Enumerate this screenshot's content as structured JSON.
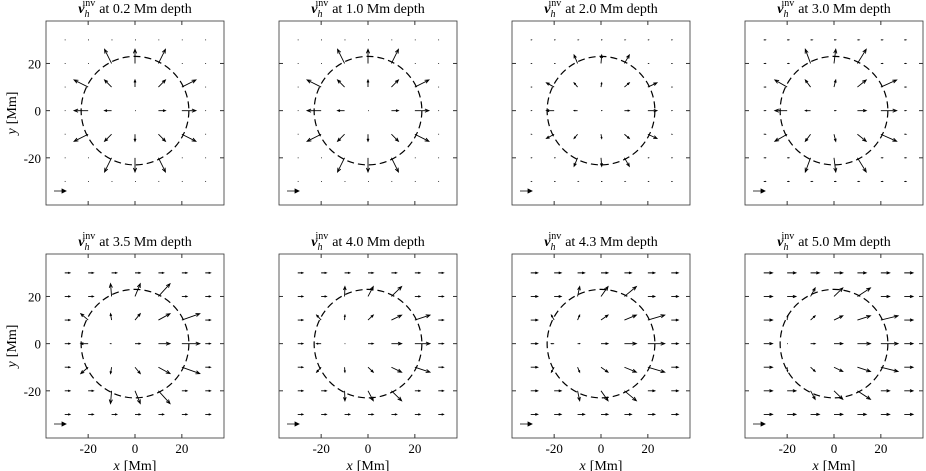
{
  "chart_data": [
    {
      "type": "quiver",
      "title": {
        "symbol": "v",
        "subscript": "h",
        "superscript": "inv",
        "text": "at 0.2 Mm depth"
      },
      "ylabel": {
        "symbol": "y",
        "text": "[Mm]"
      },
      "xlim": [
        -38,
        38
      ],
      "ylim": [
        -40,
        38
      ],
      "xticks": [
        -20,
        0,
        20
      ],
      "yticks": [
        -20,
        0,
        20
      ],
      "circle_r": 23,
      "x": [
        -30,
        -20,
        -10,
        0,
        10,
        20,
        30
      ],
      "y": [
        -30,
        -20,
        -10,
        0,
        10,
        20,
        30
      ],
      "u": [
        [
          0,
          0,
          0,
          0,
          0,
          0,
          0
        ],
        [
          0,
          0,
          -2,
          0,
          2,
          0,
          0
        ],
        [
          0,
          -4,
          -2,
          0,
          2,
          4,
          0
        ],
        [
          0,
          -4,
          -2,
          0,
          2,
          4,
          0
        ],
        [
          0,
          -4,
          -2,
          0,
          2,
          4,
          0
        ],
        [
          0,
          0,
          -2,
          0,
          2,
          0,
          0
        ],
        [
          0,
          0,
          0,
          0,
          0,
          0,
          0
        ]
      ],
      "v": [
        [
          0,
          0,
          0,
          0,
          0,
          0,
          0
        ],
        [
          0,
          0,
          -4,
          -4,
          -4,
          0,
          0
        ],
        [
          0,
          -2,
          -2,
          -2,
          -2,
          -2,
          0
        ],
        [
          0,
          0,
          0,
          0,
          0,
          0,
          0
        ],
        [
          0,
          2,
          2,
          2,
          2,
          2,
          0
        ],
        [
          0,
          0,
          4,
          4,
          4,
          0,
          0
        ],
        [
          0,
          0,
          0,
          0,
          0,
          0,
          0
        ]
      ]
    },
    {
      "type": "quiver",
      "title": {
        "symbol": "v",
        "subscript": "h",
        "superscript": "inv",
        "text": "at 1.0 Mm depth"
      },
      "xlim": [
        -38,
        38
      ],
      "ylim": [
        -40,
        38
      ],
      "xticks": [
        -20,
        0,
        20
      ],
      "yticks": [
        -20,
        0,
        20
      ],
      "circle_r": 23,
      "x": [
        -30,
        -20,
        -10,
        0,
        10,
        20,
        30
      ],
      "y": [
        -30,
        -20,
        -10,
        0,
        10,
        20,
        30
      ],
      "u": [
        [
          0,
          0,
          0,
          0,
          0,
          0,
          0
        ],
        [
          0,
          0,
          -2,
          0,
          2,
          0,
          0
        ],
        [
          0,
          -4,
          -2,
          0,
          2,
          4,
          0
        ],
        [
          0,
          -4,
          -2,
          0,
          2,
          4,
          0
        ],
        [
          0,
          -4,
          -2,
          0,
          2,
          4,
          0
        ],
        [
          0,
          0,
          -2,
          0,
          2,
          0,
          0
        ],
        [
          0,
          0,
          0,
          0,
          0,
          0,
          0
        ]
      ],
      "v": [
        [
          0,
          0,
          0,
          0,
          0,
          0,
          0
        ],
        [
          0,
          0,
          -4,
          -4,
          -4,
          0,
          0
        ],
        [
          0,
          -2,
          -2,
          -2,
          -2,
          -2,
          0
        ],
        [
          0,
          0,
          0,
          0,
          0,
          0,
          0
        ],
        [
          0,
          2,
          2,
          2,
          2,
          2,
          0
        ],
        [
          0,
          0,
          4,
          4,
          4,
          0,
          0
        ],
        [
          0,
          0,
          0,
          0,
          0,
          0,
          0
        ]
      ]
    },
    {
      "type": "quiver",
      "title": {
        "symbol": "v",
        "subscript": "h",
        "superscript": "inv",
        "text": "at 2.0 Mm depth"
      },
      "xlim": [
        -38,
        38
      ],
      "ylim": [
        -40,
        38
      ],
      "xticks": [
        -20,
        0,
        20
      ],
      "yticks": [
        -20,
        0,
        20
      ],
      "circle_r": 23,
      "x": [
        -30,
        -20,
        -10,
        0,
        10,
        20,
        30
      ],
      "y": [
        -30,
        -20,
        -10,
        0,
        10,
        20,
        30
      ],
      "u": [
        [
          0.2,
          0.2,
          0.2,
          0.2,
          0.2,
          0.2,
          0.2
        ],
        [
          0.2,
          0.2,
          -1,
          0.2,
          1.4,
          0.2,
          0.2
        ],
        [
          0.2,
          -2.2,
          -1,
          0.2,
          1.4,
          2.6,
          0.2
        ],
        [
          0.2,
          -2.2,
          -1,
          0.2,
          1.4,
          2.6,
          0.2
        ],
        [
          0.2,
          -2.2,
          -1,
          0.2,
          1.4,
          2.6,
          0.2
        ],
        [
          0.2,
          0.2,
          -1,
          0.2,
          1.4,
          0.2,
          0.2
        ],
        [
          0.2,
          0.2,
          0.2,
          0.2,
          0.2,
          0.2,
          0.2
        ]
      ],
      "v": [
        [
          0,
          0,
          0,
          0,
          0,
          0,
          0
        ],
        [
          0,
          0,
          -2.4,
          -2.4,
          -2.4,
          0,
          0
        ],
        [
          0,
          -1.2,
          -1.2,
          -1.2,
          -1.2,
          -1.2,
          0
        ],
        [
          0,
          0,
          0,
          0,
          0,
          0,
          0
        ],
        [
          0,
          1.2,
          1.2,
          1.2,
          1.2,
          1.2,
          0
        ],
        [
          0,
          0,
          2.4,
          2.4,
          2.4,
          0,
          0
        ],
        [
          0,
          0,
          0,
          0,
          0,
          0,
          0
        ]
      ]
    },
    {
      "type": "quiver",
      "title": {
        "symbol": "v",
        "subscript": "h",
        "superscript": "inv",
        "text": "at 3.0 Mm depth"
      },
      "xlim": [
        -38,
        38
      ],
      "ylim": [
        -40,
        38
      ],
      "xticks": [
        -20,
        0,
        20
      ],
      "yticks": [
        -20,
        0,
        20
      ],
      "circle_r": 23,
      "x": [
        -30,
        -20,
        -10,
        0,
        10,
        20,
        30
      ],
      "y": [
        -30,
        -20,
        -10,
        0,
        10,
        20,
        30
      ],
      "u": [
        [
          0.5,
          0.5,
          0.5,
          0.5,
          0.5,
          0.5,
          0.5
        ],
        [
          0.5,
          0.5,
          -1.5,
          0.5,
          2.5,
          0.5,
          0.5
        ],
        [
          0.5,
          -3.5,
          -1.5,
          0.5,
          2.5,
          4.5,
          0.5
        ],
        [
          0.5,
          -3.5,
          -1.5,
          0.5,
          2.5,
          4.5,
          0.5
        ],
        [
          0.5,
          -3.5,
          -1.5,
          0.5,
          2.5,
          4.5,
          0.5
        ],
        [
          0.5,
          0.5,
          -1.5,
          0.5,
          2.5,
          0.5,
          0.5
        ],
        [
          0.5,
          0.5,
          0.5,
          0.5,
          0.5,
          0.5,
          0.5
        ]
      ],
      "v": [
        [
          0,
          0,
          0,
          0,
          0,
          0,
          0
        ],
        [
          0,
          0,
          -4,
          -4,
          -4,
          0,
          0
        ],
        [
          0,
          -2,
          -2,
          -2,
          -2,
          -2,
          0
        ],
        [
          0,
          0,
          0,
          0,
          0,
          0,
          0
        ],
        [
          0,
          2,
          2,
          2,
          2,
          2,
          0
        ],
        [
          0,
          0,
          4,
          4,
          4,
          0,
          0
        ],
        [
          0,
          0,
          0,
          0,
          0,
          0,
          0
        ]
      ]
    },
    {
      "type": "quiver",
      "title": {
        "symbol": "v",
        "subscript": "h",
        "superscript": "inv",
        "text": "at 3.5 Mm depth"
      },
      "xlabel": {
        "symbol": "x",
        "text": "[Mm]"
      },
      "ylabel": {
        "symbol": "y",
        "text": "[Mm]"
      },
      "xlim": [
        -38,
        38
      ],
      "ylim": [
        -40,
        38
      ],
      "xticks": [
        -20,
        0,
        20
      ],
      "yticks": [
        -20,
        0,
        20
      ],
      "circle_r": 23,
      "x": [
        -30,
        -20,
        -10,
        0,
        10,
        20,
        30
      ],
      "y": [
        -30,
        -20,
        -10,
        0,
        10,
        20,
        30
      ],
      "u": [
        [
          1.5,
          1.5,
          1.5,
          1.5,
          1.5,
          1.5,
          1.5
        ],
        [
          1.5,
          1.5,
          -0.3,
          1.5,
          3.3,
          1.5,
          1.5
        ],
        [
          1.5,
          -2.1,
          -0.3,
          1.5,
          3.3,
          5.1,
          1.5
        ],
        [
          1.5,
          -2.1,
          -0.3,
          1.5,
          3.3,
          5.1,
          1.5
        ],
        [
          1.5,
          -2.1,
          -0.3,
          1.5,
          3.3,
          5.1,
          1.5
        ],
        [
          1.5,
          1.5,
          -0.3,
          1.5,
          3.3,
          1.5,
          1.5
        ],
        [
          1.5,
          1.5,
          1.5,
          1.5,
          1.5,
          1.5,
          1.5
        ]
      ],
      "v": [
        [
          0,
          0,
          0,
          0,
          0,
          0,
          0
        ],
        [
          0,
          0,
          -3.6,
          -3.6,
          -3.6,
          0,
          0
        ],
        [
          0,
          -1.8,
          -1.8,
          -1.8,
          -1.8,
          -1.8,
          0
        ],
        [
          0,
          0,
          0,
          0,
          0,
          0,
          0
        ],
        [
          0,
          1.8,
          1.8,
          1.8,
          1.8,
          1.8,
          0
        ],
        [
          0,
          0,
          3.6,
          3.6,
          3.6,
          0,
          0
        ],
        [
          0,
          0,
          0,
          0,
          0,
          0,
          0
        ]
      ]
    },
    {
      "type": "quiver",
      "title": {
        "symbol": "v",
        "subscript": "h",
        "superscript": "inv",
        "text": "at 4.0 Mm depth"
      },
      "xlabel": {
        "symbol": "x",
        "text": "[Mm]"
      },
      "xlim": [
        -38,
        38
      ],
      "ylim": [
        -40,
        38
      ],
      "xticks": [
        -20,
        0,
        20
      ],
      "yticks": [
        -20,
        0,
        20
      ],
      "circle_r": 23,
      "x": [
        -30,
        -20,
        -10,
        0,
        10,
        20,
        30
      ],
      "y": [
        -30,
        -20,
        -10,
        0,
        10,
        20,
        30
      ],
      "u": [
        [
          1.5,
          1.5,
          1.5,
          1.5,
          1.5,
          1.5,
          1.5
        ],
        [
          1.5,
          1.5,
          0.1,
          1.5,
          2.9,
          1.5,
          1.5
        ],
        [
          1.5,
          -1.3,
          0.1,
          1.5,
          2.9,
          4.3,
          1.5
        ],
        [
          1.5,
          -1.3,
          0.1,
          1.5,
          2.9,
          4.3,
          1.5
        ],
        [
          1.5,
          -1.3,
          0.1,
          1.5,
          2.9,
          4.3,
          1.5
        ],
        [
          1.5,
          1.5,
          0.1,
          1.5,
          2.9,
          1.5,
          1.5
        ],
        [
          1.5,
          1.5,
          1.5,
          1.5,
          1.5,
          1.5,
          1.5
        ]
      ],
      "v": [
        [
          0,
          0,
          0,
          0,
          0,
          0,
          0
        ],
        [
          0,
          0,
          -2.8,
          -2.8,
          -2.8,
          0,
          0
        ],
        [
          0,
          -1.4,
          -1.4,
          -1.4,
          -1.4,
          -1.4,
          0
        ],
        [
          0,
          0,
          0,
          0,
          0,
          0,
          0
        ],
        [
          0,
          1.4,
          1.4,
          1.4,
          1.4,
          1.4,
          0
        ],
        [
          0,
          0,
          2.8,
          2.8,
          2.8,
          0,
          0
        ],
        [
          0,
          0,
          0,
          0,
          0,
          0,
          0
        ]
      ]
    },
    {
      "type": "quiver",
      "title": {
        "symbol": "v",
        "subscript": "h",
        "superscript": "inv",
        "text": "at 4.3 Mm depth"
      },
      "xlabel": {
        "symbol": "x",
        "text": "[Mm]"
      },
      "xlim": [
        -38,
        38
      ],
      "ylim": [
        -40,
        38
      ],
      "xticks": [
        -20,
        0,
        20
      ],
      "yticks": [
        -20,
        0,
        20
      ],
      "circle_r": 23,
      "x": [
        -30,
        -20,
        -10,
        0,
        10,
        20,
        30
      ],
      "y": [
        -30,
        -20,
        -10,
        0,
        10,
        20,
        30
      ],
      "u": [
        [
          2,
          2,
          2,
          2,
          2,
          2,
          2
        ],
        [
          2,
          2,
          0.6,
          2,
          3.4,
          2,
          2
        ],
        [
          2,
          -0.8,
          0.6,
          2,
          3.4,
          4.8,
          2
        ],
        [
          2,
          -0.8,
          0.6,
          2,
          3.4,
          4.8,
          2
        ],
        [
          2,
          -0.8,
          0.6,
          2,
          3.4,
          4.8,
          2
        ],
        [
          2,
          2,
          0.6,
          2,
          3.4,
          2,
          2
        ],
        [
          2,
          2,
          2,
          2,
          2,
          2,
          2
        ]
      ],
      "v": [
        [
          0,
          0,
          0,
          0,
          0,
          0,
          0
        ],
        [
          0,
          0,
          -2.8,
          -2.8,
          -2.8,
          0,
          0
        ],
        [
          0,
          -1.4,
          -1.4,
          -1.4,
          -1.4,
          -1.4,
          0
        ],
        [
          0,
          0,
          0,
          0,
          0,
          0,
          0
        ],
        [
          0,
          1.4,
          1.4,
          1.4,
          1.4,
          1.4,
          0
        ],
        [
          0,
          0,
          2.8,
          2.8,
          2.8,
          0,
          0
        ],
        [
          0,
          0,
          0,
          0,
          0,
          0,
          0
        ]
      ]
    },
    {
      "type": "quiver",
      "title": {
        "symbol": "v",
        "subscript": "h",
        "superscript": "inv",
        "text": "at 5.0 Mm depth"
      },
      "xlabel": {
        "symbol": "x",
        "text": "[Mm]"
      },
      "xlim": [
        -38,
        38
      ],
      "ylim": [
        -40,
        38
      ],
      "xticks": [
        -20,
        0,
        20
      ],
      "yticks": [
        -20,
        0,
        20
      ],
      "circle_r": 23,
      "x": [
        -30,
        -20,
        -10,
        0,
        10,
        20,
        30
      ],
      "y": [
        -30,
        -20,
        -10,
        0,
        10,
        20,
        30
      ],
      "u": [
        [
          2.5,
          2.5,
          2.5,
          2.5,
          2.5,
          2.5,
          2.5
        ],
        [
          2.5,
          2.5,
          1.3,
          2.5,
          3.7,
          2.5,
          2.5
        ],
        [
          2.5,
          0.1,
          1.3,
          2.5,
          3.7,
          4.9,
          2.5
        ],
        [
          2.5,
          0.1,
          1.3,
          2.5,
          3.7,
          4.9,
          2.5
        ],
        [
          2.5,
          0.1,
          1.3,
          2.5,
          3.7,
          4.9,
          2.5
        ],
        [
          2.5,
          2.5,
          1.3,
          2.5,
          3.7,
          2.5,
          2.5
        ],
        [
          2.5,
          2.5,
          2.5,
          2.5,
          2.5,
          2.5,
          2.5
        ]
      ],
      "v": [
        [
          0,
          0,
          0,
          0,
          0,
          0,
          0
        ],
        [
          0,
          0,
          -2.4,
          -2.4,
          -2.4,
          0,
          0
        ],
        [
          0,
          -1.2,
          -1.2,
          -1.2,
          -1.2,
          -1.2,
          0
        ],
        [
          0,
          0,
          0,
          0,
          0,
          0,
          0
        ],
        [
          0,
          1.2,
          1.2,
          1.2,
          1.2,
          1.2,
          0
        ],
        [
          0,
          0,
          2.4,
          2.4,
          2.4,
          0,
          0
        ],
        [
          0,
          0,
          0,
          0,
          0,
          0,
          0
        ]
      ]
    }
  ]
}
